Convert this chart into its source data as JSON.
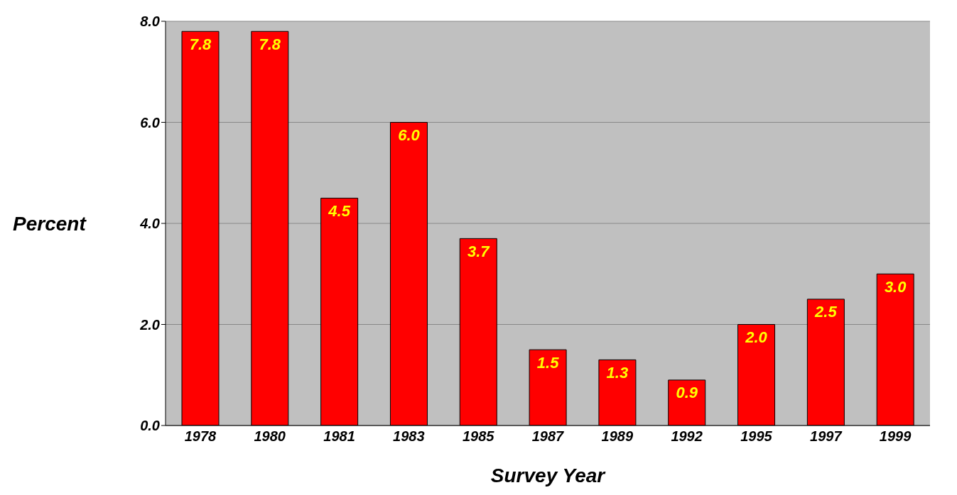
{
  "chart_data": {
    "type": "bar",
    "xlabel": "Survey Year",
    "ylabel": "Percent",
    "categories": [
      "1978",
      "1980",
      "1981",
      "1983",
      "1985",
      "1987",
      "1989",
      "1992",
      "1995",
      "1997",
      "1999"
    ],
    "values": [
      7.8,
      7.8,
      4.5,
      6.0,
      3.7,
      1.5,
      1.3,
      0.9,
      2.0,
      2.5,
      3.0
    ],
    "value_labels": [
      "7.8",
      "7.8",
      "4.5",
      "6.0",
      "3.7",
      "1.5",
      "1.3",
      "0.9",
      "2.0",
      "2.5",
      "3.0"
    ],
    "color": "#ff0000",
    "ylim": [
      0,
      8
    ],
    "yticks": [
      {
        "value": 0,
        "label": "0.0"
      },
      {
        "value": 2,
        "label": "2.0"
      },
      {
        "value": 4,
        "label": "4.0"
      },
      {
        "value": 6,
        "label": "6.0"
      },
      {
        "value": 8,
        "label": "8.0"
      }
    ],
    "grid": "y"
  }
}
